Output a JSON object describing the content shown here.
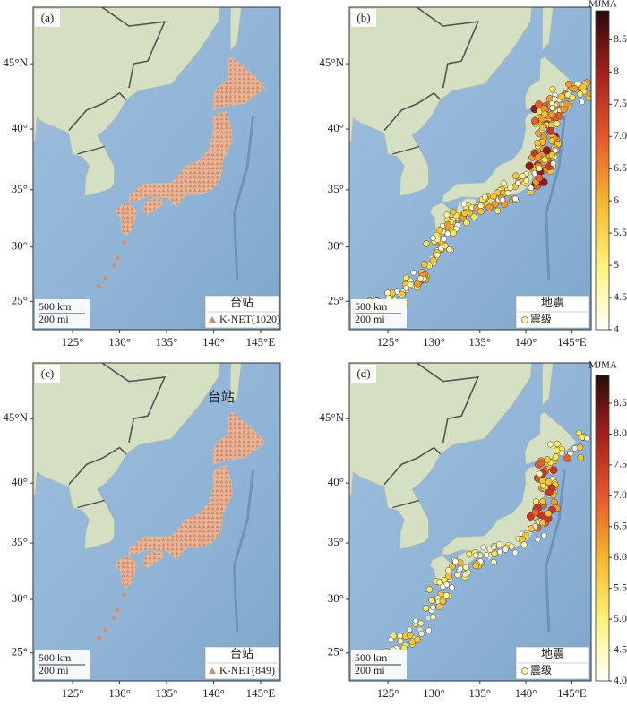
{
  "axes": {
    "x_ticks": [
      {
        "value": 125,
        "label": "125°"
      },
      {
        "value": 130,
        "label": "130°"
      },
      {
        "value": 135,
        "label": "135°"
      },
      {
        "value": 140,
        "label": "140°"
      },
      {
        "value": 145,
        "label": "145°E"
      }
    ],
    "y_ticks": [
      {
        "value": 25,
        "label": "25°"
      },
      {
        "value": 30,
        "label": "30°"
      },
      {
        "value": 35,
        "label": "35°"
      },
      {
        "value": 40,
        "label": "40°"
      },
      {
        "value": 45,
        "label": "45°N"
      }
    ]
  },
  "panels": [
    {
      "label": "(a)",
      "legend": {
        "title": "台站",
        "items": [
          "K-NET(1020)"
        ]
      },
      "scale": [
        "500 km",
        "200 mi"
      ]
    },
    {
      "label": "(b)",
      "legend": {
        "title": "地震",
        "items": [
          "震级"
        ]
      },
      "scale": [
        "500 km",
        "200 mi"
      ],
      "colorbar": {
        "title": "MJMA",
        "ticks": [
          4,
          4.5,
          5,
          5.5,
          6,
          6.5,
          {
            "value": 7,
            "label": "7.0"
          },
          7.5,
          8,
          8.5
        ]
      }
    },
    {
      "label": "(c)",
      "annotation": "台站",
      "legend": {
        "title": "台站",
        "items": [
          "K-NET(849)"
        ]
      },
      "scale": [
        "500 km",
        "200 mi"
      ]
    },
    {
      "label": "(d)",
      "legend": {
        "title": "地震",
        "items": [
          "震级"
        ]
      },
      "scale": [
        "500 km",
        "200 mi"
      ],
      "colorbar": {
        "title": "MJMA",
        "ticks": [
          {
            "value": 4,
            "label": "4.0"
          },
          4.5,
          {
            "value": 5,
            "label": "5.0"
          },
          5.5,
          {
            "value": 6,
            "label": "6.0"
          },
          6.5,
          {
            "value": 7,
            "label": "7.0"
          },
          7.5,
          {
            "value": 8,
            "label": "8.0"
          },
          8.5
        ]
      }
    }
  ]
}
